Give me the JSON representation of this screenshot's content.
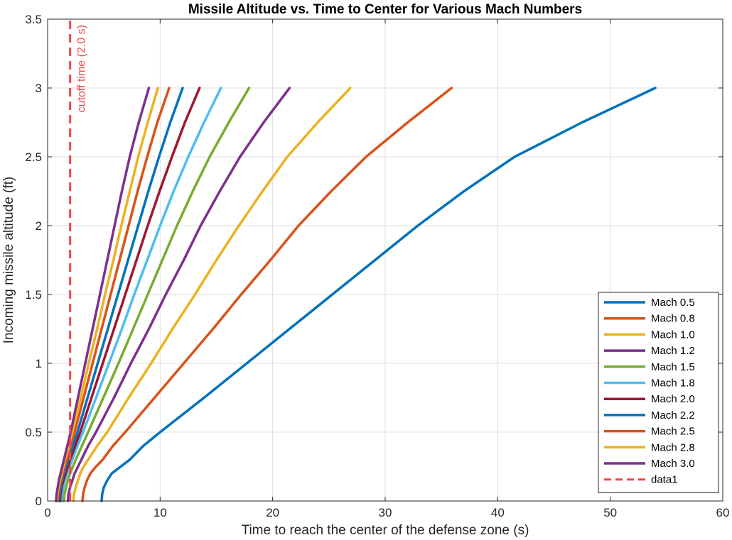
{
  "chart_data": {
    "type": "line",
    "title": "Missile Altitude vs. Time to Center for Various Mach Numbers",
    "xlabel": "Time to reach the center of the defense zone (s)",
    "ylabel": "Incoming missile altitude (ft)",
    "xlim": [
      0,
      60
    ],
    "ylim": [
      0,
      3.5
    ],
    "xticks": [
      0,
      10,
      20,
      30,
      40,
      50,
      60
    ],
    "yticks": [
      0,
      0.5,
      1,
      1.5,
      2,
      2.5,
      3,
      3.5
    ],
    "xtick_labels": [
      "0",
      "10",
      "20",
      "30",
      "40",
      "50",
      "60"
    ],
    "ytick_labels": [
      "0",
      "0.5",
      "1",
      "1.5",
      "2",
      "2.5",
      "3",
      "3.5"
    ],
    "grid": true,
    "legend_position": "bottom-right",
    "series": [
      {
        "name": "Mach 0.5",
        "color": "#0072BD",
        "points": [
          [
            4.8,
            0
          ],
          [
            4.85,
            0.05
          ],
          [
            5.0,
            0.1
          ],
          [
            5.3,
            0.15
          ],
          [
            5.7,
            0.2
          ],
          [
            6.5,
            0.25
          ],
          [
            7.3,
            0.3
          ],
          [
            8.5,
            0.4
          ],
          [
            10,
            0.5
          ],
          [
            13.9,
            0.75
          ],
          [
            17.7,
            1.0
          ],
          [
            21.5,
            1.25
          ],
          [
            25.3,
            1.5
          ],
          [
            29.1,
            1.75
          ],
          [
            32.9,
            2.0
          ],
          [
            37.0,
            2.25
          ],
          [
            41.5,
            2.5
          ],
          [
            47.5,
            2.75
          ],
          [
            54,
            3.0
          ]
        ]
      },
      {
        "name": "Mach 0.8",
        "color": "#D95319",
        "points": [
          [
            3.1,
            0
          ],
          [
            3.15,
            0.05
          ],
          [
            3.3,
            0.1
          ],
          [
            3.5,
            0.15
          ],
          [
            3.8,
            0.2
          ],
          [
            4.3,
            0.25
          ],
          [
            4.9,
            0.3
          ],
          [
            5.8,
            0.4
          ],
          [
            6.9,
            0.5
          ],
          [
            9.5,
            0.75
          ],
          [
            12.1,
            1.0
          ],
          [
            14.7,
            1.25
          ],
          [
            17.2,
            1.5
          ],
          [
            19.8,
            1.75
          ],
          [
            22.3,
            2.0
          ],
          [
            25.2,
            2.25
          ],
          [
            28.3,
            2.5
          ],
          [
            32.0,
            2.75
          ],
          [
            35.9,
            3.0
          ]
        ]
      },
      {
        "name": "Mach 1.0",
        "color": "#EDB120",
        "points": [
          [
            2.3,
            0
          ],
          [
            2.35,
            0.05
          ],
          [
            2.5,
            0.1
          ],
          [
            2.7,
            0.15
          ],
          [
            2.9,
            0.2
          ],
          [
            3.2,
            0.25
          ],
          [
            3.6,
            0.3
          ],
          [
            4.4,
            0.4
          ],
          [
            5.3,
            0.5
          ],
          [
            7.2,
            0.75
          ],
          [
            9.2,
            1.0
          ],
          [
            11.1,
            1.25
          ],
          [
            13.1,
            1.5
          ],
          [
            15.0,
            1.75
          ],
          [
            17.0,
            2.0
          ],
          [
            19.1,
            2.25
          ],
          [
            21.3,
            2.5
          ],
          [
            24.0,
            2.75
          ],
          [
            26.9,
            3.0
          ]
        ]
      },
      {
        "name": "Mach 1.2",
        "color": "#7E2F8E",
        "points": [
          [
            1.8,
            0
          ],
          [
            1.85,
            0.05
          ],
          [
            2.0,
            0.1
          ],
          [
            2.2,
            0.15
          ],
          [
            2.4,
            0.2
          ],
          [
            2.7,
            0.25
          ],
          [
            3.0,
            0.3
          ],
          [
            3.6,
            0.4
          ],
          [
            4.3,
            0.5
          ],
          [
            5.9,
            0.75
          ],
          [
            7.4,
            1.0
          ],
          [
            9.0,
            1.25
          ],
          [
            10.5,
            1.5
          ],
          [
            12.1,
            1.75
          ],
          [
            13.6,
            2.0
          ],
          [
            15.3,
            2.25
          ],
          [
            17.1,
            2.5
          ],
          [
            19.2,
            2.75
          ],
          [
            21.5,
            3.0
          ]
        ]
      },
      {
        "name": "Mach 1.5",
        "color": "#77AC30",
        "points": [
          [
            1.45,
            0
          ],
          [
            1.5,
            0.05
          ],
          [
            1.65,
            0.1
          ],
          [
            1.8,
            0.15
          ],
          [
            2.0,
            0.2
          ],
          [
            2.25,
            0.25
          ],
          [
            2.5,
            0.3
          ],
          [
            3.05,
            0.4
          ],
          [
            3.6,
            0.5
          ],
          [
            4.95,
            0.75
          ],
          [
            6.3,
            1.0
          ],
          [
            7.6,
            1.25
          ],
          [
            8.9,
            1.5
          ],
          [
            10.2,
            1.75
          ],
          [
            11.5,
            2.0
          ],
          [
            12.9,
            2.25
          ],
          [
            14.4,
            2.5
          ],
          [
            16.1,
            2.75
          ],
          [
            17.9,
            3.0
          ]
        ]
      },
      {
        "name": "Mach 1.8",
        "color": "#4DBEEE",
        "points": [
          [
            1.25,
            0
          ],
          [
            1.3,
            0.05
          ],
          [
            1.4,
            0.1
          ],
          [
            1.55,
            0.15
          ],
          [
            1.75,
            0.2
          ],
          [
            1.95,
            0.25
          ],
          [
            2.2,
            0.3
          ],
          [
            2.65,
            0.4
          ],
          [
            3.15,
            0.5
          ],
          [
            4.3,
            0.75
          ],
          [
            5.45,
            1.0
          ],
          [
            6.6,
            1.25
          ],
          [
            7.7,
            1.5
          ],
          [
            8.85,
            1.75
          ],
          [
            10.0,
            2.0
          ],
          [
            11.2,
            2.25
          ],
          [
            12.5,
            2.5
          ],
          [
            13.9,
            2.75
          ],
          [
            15.4,
            3.0
          ]
        ]
      },
      {
        "name": "Mach 2.0",
        "color": "#A2142F",
        "points": [
          [
            1.1,
            0
          ],
          [
            1.15,
            0.05
          ],
          [
            1.25,
            0.1
          ],
          [
            1.4,
            0.15
          ],
          [
            1.6,
            0.2
          ],
          [
            1.8,
            0.25
          ],
          [
            2.0,
            0.3
          ],
          [
            2.45,
            0.4
          ],
          [
            2.9,
            0.5
          ],
          [
            3.9,
            0.75
          ],
          [
            4.9,
            1.0
          ],
          [
            5.9,
            1.25
          ],
          [
            6.9,
            1.5
          ],
          [
            7.9,
            1.75
          ],
          [
            8.9,
            2.0
          ],
          [
            9.95,
            2.25
          ],
          [
            11.05,
            2.5
          ],
          [
            12.2,
            2.75
          ],
          [
            13.5,
            3.0
          ]
        ]
      },
      {
        "name": "Mach 2.2",
        "color": "#0072BD",
        "points": [
          [
            1.0,
            0
          ],
          [
            1.05,
            0.05
          ],
          [
            1.15,
            0.1
          ],
          [
            1.3,
            0.15
          ],
          [
            1.45,
            0.2
          ],
          [
            1.65,
            0.25
          ],
          [
            1.85,
            0.3
          ],
          [
            2.25,
            0.4
          ],
          [
            2.65,
            0.5
          ],
          [
            3.55,
            0.75
          ],
          [
            4.45,
            1.0
          ],
          [
            5.35,
            1.25
          ],
          [
            6.25,
            1.5
          ],
          [
            7.15,
            1.75
          ],
          [
            8.05,
            2.0
          ],
          [
            8.95,
            2.25
          ],
          [
            9.9,
            2.5
          ],
          [
            10.9,
            2.75
          ],
          [
            12.0,
            3.0
          ]
        ]
      },
      {
        "name": "Mach 2.5",
        "color": "#D95319",
        "points": [
          [
            0.9,
            0
          ],
          [
            0.95,
            0.05
          ],
          [
            1.05,
            0.1
          ],
          [
            1.2,
            0.15
          ],
          [
            1.35,
            0.2
          ],
          [
            1.5,
            0.25
          ],
          [
            1.7,
            0.3
          ],
          [
            2.05,
            0.4
          ],
          [
            2.4,
            0.5
          ],
          [
            3.2,
            0.75
          ],
          [
            4.0,
            1.0
          ],
          [
            4.8,
            1.25
          ],
          [
            5.6,
            1.5
          ],
          [
            6.4,
            1.75
          ],
          [
            7.2,
            2.0
          ],
          [
            8.0,
            2.25
          ],
          [
            8.85,
            2.5
          ],
          [
            9.75,
            2.75
          ],
          [
            10.8,
            3.0
          ]
        ]
      },
      {
        "name": "Mach 2.8",
        "color": "#EDB120",
        "points": [
          [
            0.82,
            0
          ],
          [
            0.87,
            0.05
          ],
          [
            0.97,
            0.1
          ],
          [
            1.1,
            0.15
          ],
          [
            1.25,
            0.2
          ],
          [
            1.4,
            0.25
          ],
          [
            1.55,
            0.3
          ],
          [
            1.9,
            0.4
          ],
          [
            2.2,
            0.5
          ],
          [
            2.95,
            0.75
          ],
          [
            3.65,
            1.0
          ],
          [
            4.4,
            1.25
          ],
          [
            5.1,
            1.5
          ],
          [
            5.85,
            1.75
          ],
          [
            6.55,
            2.0
          ],
          [
            7.3,
            2.25
          ],
          [
            8.05,
            2.5
          ],
          [
            8.9,
            2.75
          ],
          [
            9.8,
            3.0
          ]
        ]
      },
      {
        "name": "Mach 3.0",
        "color": "#7E2F8E",
        "points": [
          [
            0.75,
            0
          ],
          [
            0.8,
            0.05
          ],
          [
            0.9,
            0.1
          ],
          [
            1.0,
            0.15
          ],
          [
            1.15,
            0.2
          ],
          [
            1.3,
            0.25
          ],
          [
            1.45,
            0.3
          ],
          [
            1.75,
            0.4
          ],
          [
            2.05,
            0.5
          ],
          [
            2.7,
            0.75
          ],
          [
            3.35,
            1.0
          ],
          [
            4.0,
            1.25
          ],
          [
            4.65,
            1.5
          ],
          [
            5.3,
            1.75
          ],
          [
            5.95,
            2.0
          ],
          [
            6.6,
            2.25
          ],
          [
            7.3,
            2.5
          ],
          [
            8.1,
            2.75
          ],
          [
            9.0,
            3.0
          ]
        ]
      },
      {
        "name": "data1",
        "color": "#F0484B",
        "dashed": true,
        "points": [
          [
            2.0,
            0
          ],
          [
            2.0,
            3.5
          ]
        ]
      }
    ],
    "annotations": [
      {
        "text": "cutoff time (2.0 s)",
        "x": 2.0,
        "y": 3.5,
        "rotation": -90,
        "color": "#F0484B"
      }
    ]
  }
}
